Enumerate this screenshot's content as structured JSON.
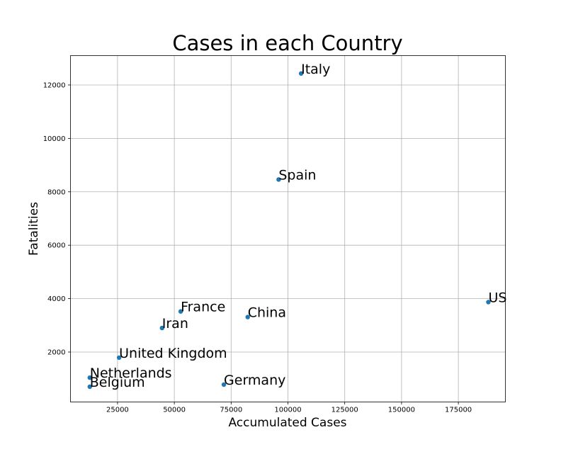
{
  "chart_data": {
    "type": "scatter",
    "title": "Cases in each Country",
    "xlabel": "Accumulated Cases",
    "ylabel": "Fatalities",
    "xlim": [
      4300,
      195700
    ],
    "ylim": [
      130,
      13100
    ],
    "xticks": [
      25000,
      50000,
      75000,
      100000,
      125000,
      150000,
      175000
    ],
    "yticks": [
      2000,
      4000,
      6000,
      8000,
      10000,
      12000
    ],
    "grid": true,
    "marker_color": "#1f77b4",
    "points": [
      {
        "label": "Italy",
        "x": 105800,
        "y": 12430
      },
      {
        "label": "Spain",
        "x": 95900,
        "y": 8460
      },
      {
        "label": "US",
        "x": 188200,
        "y": 3870
      },
      {
        "label": "France",
        "x": 52800,
        "y": 3520
      },
      {
        "label": "China",
        "x": 82300,
        "y": 3310
      },
      {
        "label": "Iran",
        "x": 44600,
        "y": 2900
      },
      {
        "label": "United Kingdom",
        "x": 25700,
        "y": 1790
      },
      {
        "label": "Netherlands",
        "x": 12800,
        "y": 1040
      },
      {
        "label": "Germany",
        "x": 71800,
        "y": 780
      },
      {
        "label": "Belgium",
        "x": 12800,
        "y": 700
      }
    ]
  }
}
